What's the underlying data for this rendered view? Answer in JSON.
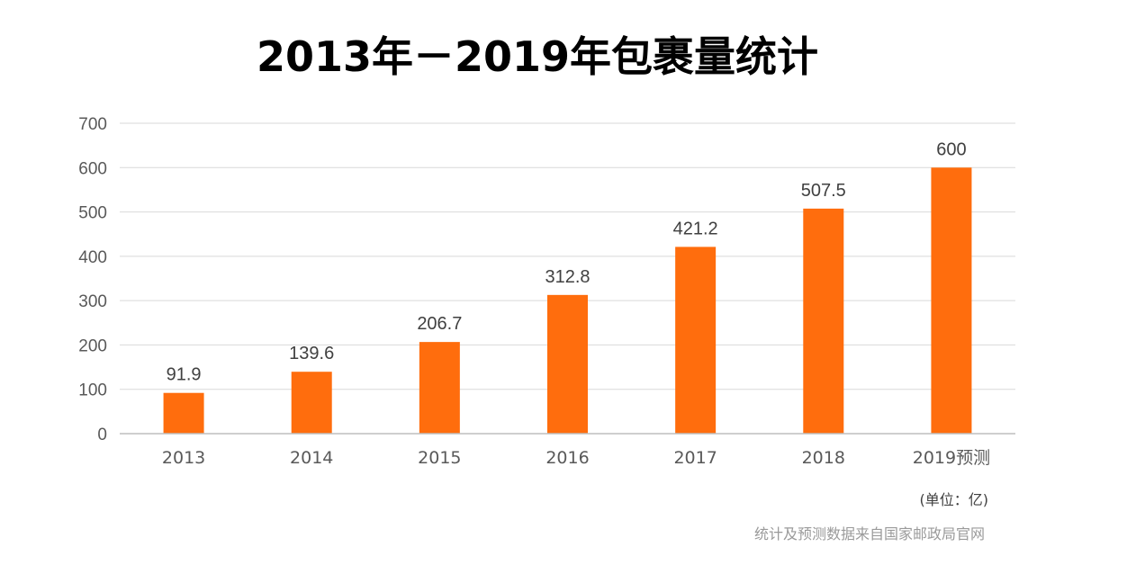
{
  "chart_data": {
    "type": "bar",
    "title": "2013年－2019年包裹量统计",
    "categories": [
      "2013",
      "2014",
      "2015",
      "2016",
      "2017",
      "2018",
      "2019预测"
    ],
    "values": [
      91.9,
      139.6,
      206.7,
      312.8,
      421.2,
      507.5,
      600
    ],
    "data_labels": [
      "91.9",
      "139.6",
      "206.7",
      "312.8",
      "421.2",
      "507.5",
      "600"
    ],
    "y_ticks": [
      0,
      100,
      200,
      300,
      400,
      500,
      600,
      700
    ],
    "ylim": [
      0,
      700
    ],
    "xlabel": "",
    "ylabel": "",
    "grid": true,
    "legend": "none",
    "bar_color": "#ff6d0d",
    "unit_note": "(单位：亿)",
    "source_note": "统计及预测数据来自国家邮政局官网"
  }
}
